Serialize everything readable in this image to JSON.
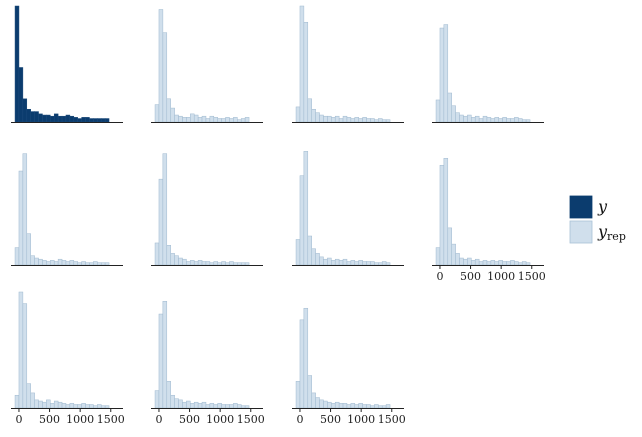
{
  "chart_data": {
    "type": "histogram-grid",
    "layout": {
      "rows": 3,
      "cols": 4
    },
    "x_ticks": [
      0,
      500,
      1000,
      1500
    ],
    "x_tick_labels": [
      "0",
      "500",
      "1000",
      "1500"
    ],
    "xlim": [
      -130,
      1700
    ],
    "ylim": [
      0,
      100
    ],
    "grid": false,
    "legend_position": "right",
    "legend": [
      {
        "key": "y",
        "label": "y",
        "subscript": "",
        "color": "#0b3c6e"
      },
      {
        "key": "yrep",
        "label": "y",
        "subscript": "rep",
        "color": "#d0dfec"
      }
    ],
    "bin_width": 64,
    "bin_start": -64,
    "panels": [
      {
        "series": "y",
        "show_x_axis": false,
        "counts": [
          100,
          47,
          20,
          11,
          9,
          9,
          7,
          6,
          6,
          5,
          7,
          5,
          5,
          6,
          5,
          4,
          3,
          4,
          4,
          3,
          3,
          3,
          3,
          3
        ]
      },
      {
        "series": "yrep",
        "show_x_axis": false,
        "counts": [
          15,
          97,
          77,
          20,
          12,
          6,
          5,
          4,
          4,
          7,
          6,
          4,
          5,
          3,
          5,
          4,
          3,
          3,
          4,
          3,
          4,
          2,
          3,
          4
        ]
      },
      {
        "series": "yrep",
        "show_x_axis": false,
        "counts": [
          13,
          100,
          86,
          20,
          11,
          8,
          6,
          5,
          5,
          4,
          5,
          3,
          5,
          4,
          3,
          4,
          3,
          4,
          3,
          3,
          2,
          3,
          2,
          2
        ]
      },
      {
        "series": "yrep",
        "show_x_axis": false,
        "counts": [
          19,
          81,
          84,
          25,
          14,
          8,
          6,
          5,
          6,
          4,
          5,
          3,
          5,
          4,
          3,
          4,
          3,
          4,
          3,
          3,
          4,
          3,
          2,
          2
        ]
      },
      {
        "series": "yrep",
        "show_x_axis": false,
        "counts": [
          15,
          81,
          96,
          27,
          8,
          6,
          5,
          4,
          3,
          4,
          3,
          5,
          4,
          3,
          4,
          3,
          2,
          3,
          2,
          2,
          3,
          2,
          2,
          2
        ]
      },
      {
        "series": "yrep",
        "show_x_axis": false,
        "counts": [
          19,
          74,
          96,
          17,
          10,
          8,
          6,
          5,
          3,
          4,
          3,
          4,
          3,
          3,
          2,
          3,
          2,
          3,
          2,
          3,
          2,
          2,
          2,
          2
        ]
      },
      {
        "series": "yrep",
        "show_x_axis": false,
        "counts": [
          22,
          77,
          98,
          25,
          14,
          10,
          7,
          5,
          6,
          4,
          5,
          4,
          5,
          3,
          4,
          3,
          4,
          3,
          3,
          3,
          2,
          2,
          3,
          2
        ]
      },
      {
        "series": "yrep",
        "show_x_axis": true,
        "counts": [
          15,
          86,
          92,
          32,
          18,
          10,
          6,
          5,
          6,
          4,
          5,
          3,
          4,
          3,
          4,
          3,
          4,
          3,
          3,
          4,
          3,
          2,
          3,
          2
        ]
      },
      {
        "series": "yrep",
        "show_x_axis": true,
        "counts": [
          11,
          100,
          90,
          21,
          13,
          7,
          6,
          5,
          7,
          4,
          6,
          5,
          4,
          3,
          4,
          3,
          3,
          4,
          3,
          3,
          2,
          3,
          2,
          2
        ]
      },
      {
        "series": "yrep",
        "show_x_axis": true,
        "counts": [
          15,
          81,
          92,
          23,
          11,
          8,
          7,
          5,
          6,
          4,
          5,
          4,
          5,
          3,
          4,
          3,
          4,
          3,
          3,
          3,
          4,
          3,
          2,
          2
        ]
      },
      {
        "series": "yrep",
        "show_x_axis": true,
        "counts": [
          23,
          76,
          86,
          28,
          13,
          9,
          7,
          6,
          5,
          4,
          5,
          4,
          4,
          3,
          4,
          3,
          4,
          3,
          3,
          2,
          3,
          2,
          2,
          3
        ]
      }
    ]
  }
}
